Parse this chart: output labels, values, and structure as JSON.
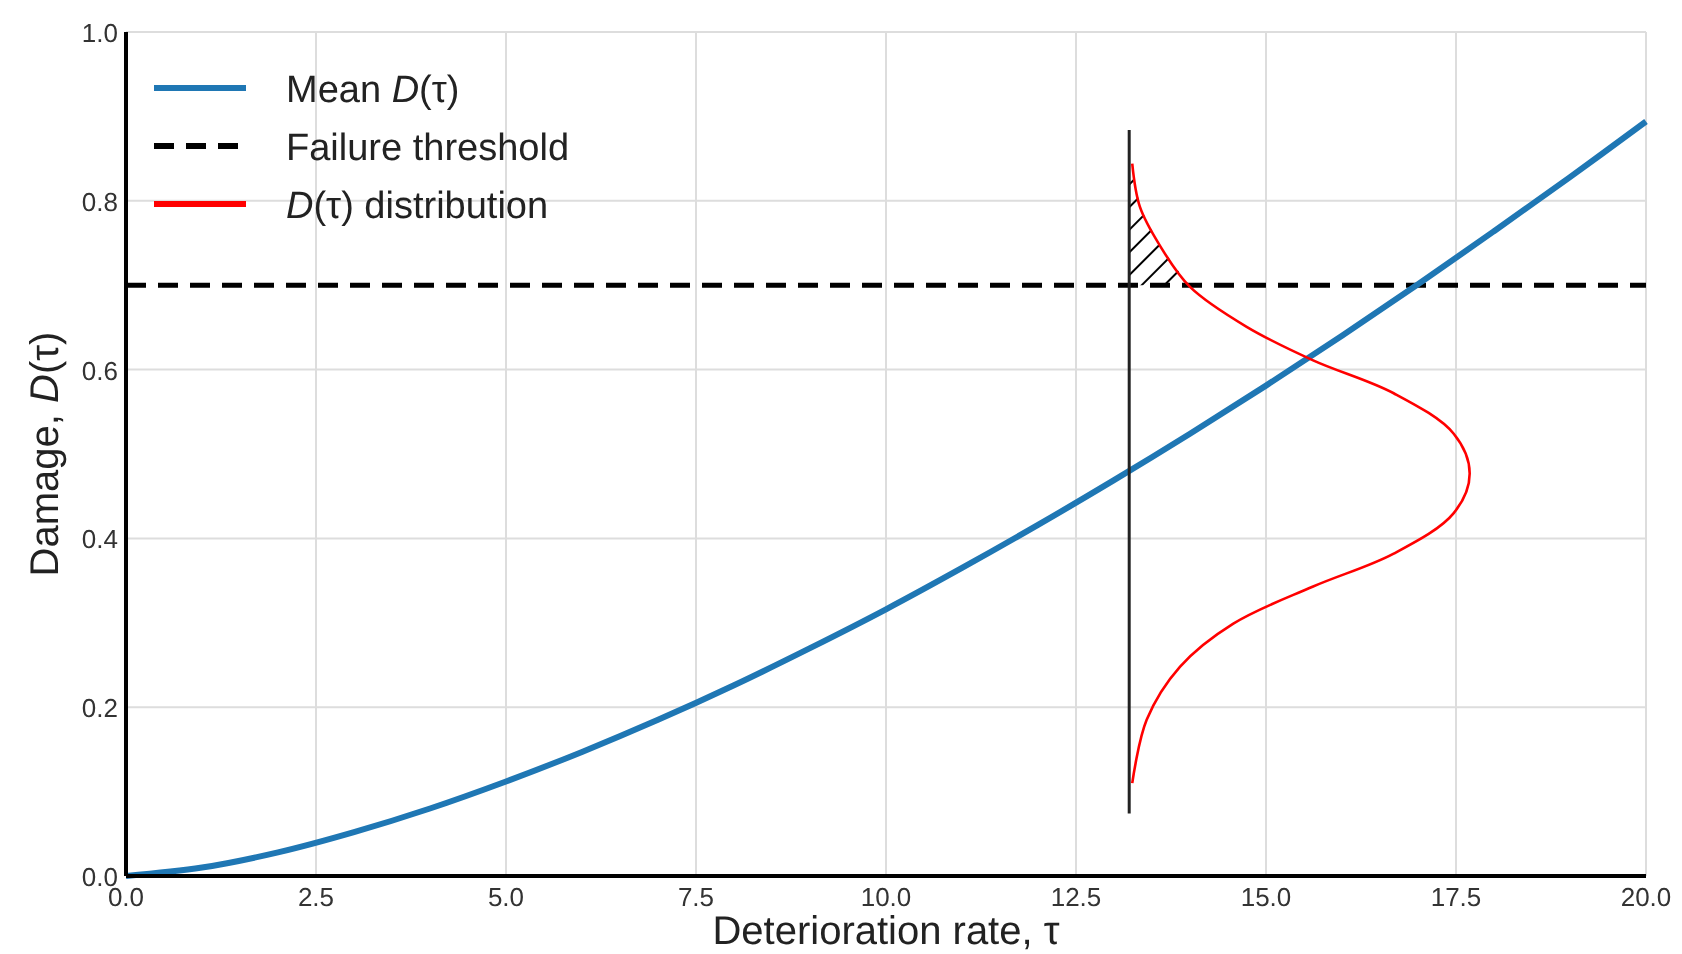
{
  "chart_data": {
    "type": "line",
    "xlabel": "Deterioration rate, τ",
    "ylabel": "Damage, D(τ)",
    "xlim": [
      0,
      20
    ],
    "ylim": [
      0,
      1
    ],
    "xticks": [
      {
        "value": 0,
        "label": "0.0"
      },
      {
        "value": 2.5,
        "label": "2.5"
      },
      {
        "value": 5,
        "label": "5.0"
      },
      {
        "value": 7.5,
        "label": "7.5"
      },
      {
        "value": 10,
        "label": "10.0"
      },
      {
        "value": 12.5,
        "label": "12.5"
      },
      {
        "value": 15,
        "label": "15.0"
      },
      {
        "value": 17.5,
        "label": "17.5"
      },
      {
        "value": 20,
        "label": "20.0"
      }
    ],
    "yticks": [
      {
        "value": 0,
        "label": "0.0"
      },
      {
        "value": 0.2,
        "label": "0.2"
      },
      {
        "value": 0.4,
        "label": "0.4"
      },
      {
        "value": 0.6,
        "label": "0.6"
      },
      {
        "value": 0.8,
        "label": "0.8"
      },
      {
        "value": 1,
        "label": "1.0"
      }
    ],
    "grid": true,
    "legend": "top left",
    "series": [
      {
        "name": "Mean D(τ)",
        "color": "#1f77b4",
        "x": [
          0,
          1,
          2,
          3,
          4,
          5,
          6,
          7,
          8,
          9,
          10,
          11,
          12,
          13,
          14,
          15,
          16,
          17,
          18,
          19,
          20
        ],
        "values": [
          0,
          0.01,
          0.028,
          0.052,
          0.08,
          0.112,
          0.147,
          0.185,
          0.226,
          0.27,
          0.316,
          0.365,
          0.416,
          0.469,
          0.524,
          0.581,
          0.64,
          0.701,
          0.764,
          0.828,
          0.894
        ]
      },
      {
        "type": "line",
        "color": "#222222",
        "x": [
          13.2,
          13.2
        ],
        "values": [
          0.074,
          0.884
        ]
      },
      {
        "name": "D(τ) distribution",
        "color": "#ff0000",
        "x": [
          13.24,
          13.43,
          13.87,
          14.57,
          15.62,
          16.68,
          17.47,
          17.68,
          17.47,
          16.68,
          15.62,
          14.74,
          14.0,
          13.61,
          13.34,
          13.24
        ],
        "values": [
          0.11,
          0.185,
          0.248,
          0.299,
          0.343,
          0.382,
          0.43,
          0.477,
          0.524,
          0.572,
          0.611,
          0.651,
          0.698,
          0.746,
          0.793,
          0.844
        ]
      }
    ],
    "ref_lines": [
      {
        "axis": "y",
        "value": 0.7,
        "label": "Failure threshold",
        "color": "#000000",
        "line_style": "dashed"
      }
    ]
  }
}
